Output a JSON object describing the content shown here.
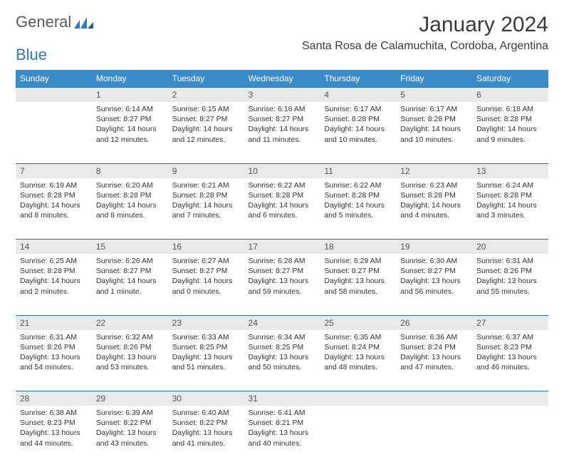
{
  "brand": {
    "part1": "General",
    "part2": "Blue"
  },
  "title": "January 2024",
  "location": "Santa Rosa de Calamuchita, Cordoba, Argentina",
  "colors": {
    "header_bg": "#3b8bc8",
    "header_text": "#ffffff",
    "daynum_bg": "#e9e9e9",
    "row_divider": "#2c6da3",
    "text": "#333333",
    "logo_gray": "#5a5a5a",
    "logo_blue": "#2b7bbf"
  },
  "weekdays": [
    "Sunday",
    "Monday",
    "Tuesday",
    "Wednesday",
    "Thursday",
    "Friday",
    "Saturday"
  ],
  "weeks": [
    [
      {
        "n": "",
        "sr": "",
        "ss": "",
        "dl": ""
      },
      {
        "n": "1",
        "sr": "6:14 AM",
        "ss": "8:27 PM",
        "dl": "14 hours and 12 minutes."
      },
      {
        "n": "2",
        "sr": "6:15 AM",
        "ss": "8:27 PM",
        "dl": "14 hours and 12 minutes."
      },
      {
        "n": "3",
        "sr": "6:16 AM",
        "ss": "8:27 PM",
        "dl": "14 hours and 11 minutes."
      },
      {
        "n": "4",
        "sr": "6:17 AM",
        "ss": "8:28 PM",
        "dl": "14 hours and 10 minutes."
      },
      {
        "n": "5",
        "sr": "6:17 AM",
        "ss": "8:28 PM",
        "dl": "14 hours and 10 minutes."
      },
      {
        "n": "6",
        "sr": "6:18 AM",
        "ss": "8:28 PM",
        "dl": "14 hours and 9 minutes."
      }
    ],
    [
      {
        "n": "7",
        "sr": "6:19 AM",
        "ss": "8:28 PM",
        "dl": "14 hours and 8 minutes."
      },
      {
        "n": "8",
        "sr": "6:20 AM",
        "ss": "8:28 PM",
        "dl": "14 hours and 8 minutes."
      },
      {
        "n": "9",
        "sr": "6:21 AM",
        "ss": "8:28 PM",
        "dl": "14 hours and 7 minutes."
      },
      {
        "n": "10",
        "sr": "6:22 AM",
        "ss": "8:28 PM",
        "dl": "14 hours and 6 minutes."
      },
      {
        "n": "11",
        "sr": "6:22 AM",
        "ss": "8:28 PM",
        "dl": "14 hours and 5 minutes."
      },
      {
        "n": "12",
        "sr": "6:23 AM",
        "ss": "8:28 PM",
        "dl": "14 hours and 4 minutes."
      },
      {
        "n": "13",
        "sr": "6:24 AM",
        "ss": "8:28 PM",
        "dl": "14 hours and 3 minutes."
      }
    ],
    [
      {
        "n": "14",
        "sr": "6:25 AM",
        "ss": "8:28 PM",
        "dl": "14 hours and 2 minutes."
      },
      {
        "n": "15",
        "sr": "6:26 AM",
        "ss": "8:27 PM",
        "dl": "14 hours and 1 minute."
      },
      {
        "n": "16",
        "sr": "6:27 AM",
        "ss": "8:27 PM",
        "dl": "14 hours and 0 minutes."
      },
      {
        "n": "17",
        "sr": "6:28 AM",
        "ss": "8:27 PM",
        "dl": "13 hours and 59 minutes."
      },
      {
        "n": "18",
        "sr": "6:29 AM",
        "ss": "8:27 PM",
        "dl": "13 hours and 58 minutes."
      },
      {
        "n": "19",
        "sr": "6:30 AM",
        "ss": "8:27 PM",
        "dl": "13 hours and 56 minutes."
      },
      {
        "n": "20",
        "sr": "6:31 AM",
        "ss": "8:26 PM",
        "dl": "13 hours and 55 minutes."
      }
    ],
    [
      {
        "n": "21",
        "sr": "6:31 AM",
        "ss": "8:26 PM",
        "dl": "13 hours and 54 minutes."
      },
      {
        "n": "22",
        "sr": "6:32 AM",
        "ss": "8:26 PM",
        "dl": "13 hours and 53 minutes."
      },
      {
        "n": "23",
        "sr": "6:33 AM",
        "ss": "8:25 PM",
        "dl": "13 hours and 51 minutes."
      },
      {
        "n": "24",
        "sr": "6:34 AM",
        "ss": "8:25 PM",
        "dl": "13 hours and 50 minutes."
      },
      {
        "n": "25",
        "sr": "6:35 AM",
        "ss": "8:24 PM",
        "dl": "13 hours and 48 minutes."
      },
      {
        "n": "26",
        "sr": "6:36 AM",
        "ss": "8:24 PM",
        "dl": "13 hours and 47 minutes."
      },
      {
        "n": "27",
        "sr": "6:37 AM",
        "ss": "8:23 PM",
        "dl": "13 hours and 46 minutes."
      }
    ],
    [
      {
        "n": "28",
        "sr": "6:38 AM",
        "ss": "8:23 PM",
        "dl": "13 hours and 44 minutes."
      },
      {
        "n": "29",
        "sr": "6:39 AM",
        "ss": "8:22 PM",
        "dl": "13 hours and 43 minutes."
      },
      {
        "n": "30",
        "sr": "6:40 AM",
        "ss": "8:22 PM",
        "dl": "13 hours and 41 minutes."
      },
      {
        "n": "31",
        "sr": "6:41 AM",
        "ss": "8:21 PM",
        "dl": "13 hours and 40 minutes."
      },
      {
        "n": "",
        "sr": "",
        "ss": "",
        "dl": ""
      },
      {
        "n": "",
        "sr": "",
        "ss": "",
        "dl": ""
      },
      {
        "n": "",
        "sr": "",
        "ss": "",
        "dl": ""
      }
    ]
  ],
  "labels": {
    "sunrise": "Sunrise:",
    "sunset": "Sunset:",
    "daylight": "Daylight:"
  }
}
